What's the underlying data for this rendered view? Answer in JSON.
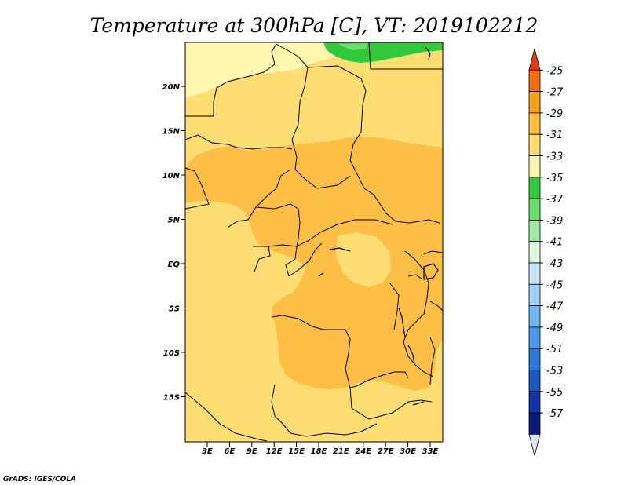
{
  "title": "Temperature at 300hPa [C], VT: 2019102212",
  "credit": "GrADS: IGES/COLA",
  "map": {
    "lat_labels": [
      "20N",
      "15N",
      "10N",
      "5N",
      "EQ",
      "5S",
      "10S",
      "15S"
    ],
    "lon_labels": [
      "3E",
      "6E",
      "9E",
      "12E",
      "15E",
      "18E",
      "21E",
      "24E",
      "27E",
      "30E",
      "33E"
    ]
  },
  "colorbar": {
    "labels": [
      "-25",
      "-27",
      "-29",
      "-31",
      "-33",
      "-35",
      "-37",
      "-39",
      "-41",
      "-43",
      "-45",
      "-47",
      "-49",
      "-51",
      "-53",
      "-55",
      "-57"
    ],
    "colors": [
      "#e83c10",
      "#f06e0c",
      "#f5a020",
      "#fcbe44",
      "#fedd72",
      "#fff6b0",
      "#32c83c",
      "#6cdc6c",
      "#a2e8a2",
      "#dff7df",
      "#c6e4fb",
      "#a2cff5",
      "#74b6f0",
      "#4a98e8",
      "#2c76d6",
      "#1a55c0",
      "#0f36a4",
      "#0a1a7a",
      "#dde3f6"
    ]
  },
  "palette": {
    "light_yellow": "#fff6b0",
    "yellow": "#fedd72",
    "orange": "#fcbe44",
    "green": "#32c83c",
    "light_green": "#6cdc6c"
  }
}
